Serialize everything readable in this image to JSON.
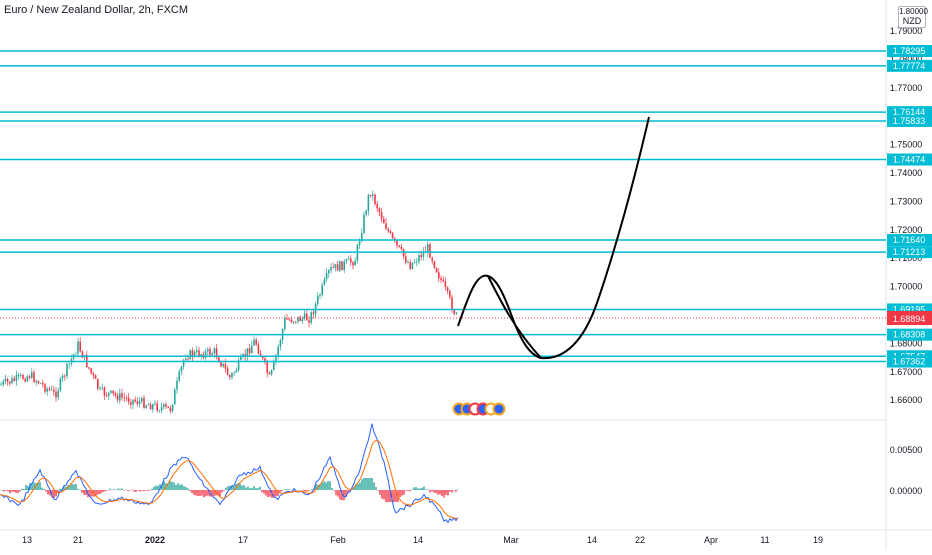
{
  "header": {
    "title": "Euro / New Zealand Dollar, 2h, FXCM",
    "currency": "NZD"
  },
  "colors": {
    "level_line": "#00bcd4",
    "level_badge_bg": "#00bcd4",
    "price_badge_bg": "#f23645",
    "candle_up": "#26a69a",
    "candle_down": "#f23645",
    "macd_line": "#2962ff",
    "signal_line": "#ff6d00",
    "projection": "#000000",
    "axis_text": "#131722"
  },
  "price_axis": {
    "top_value": "1.80000",
    "ticks": [
      "1.79000",
      "1.78000",
      "1.77000",
      "1.76000",
      "1.75000",
      "1.74000",
      "1.73000",
      "1.72000",
      "1.71000",
      "1.70000",
      "1.69000",
      "1.68000",
      "1.67000",
      "1.66000"
    ]
  },
  "levels": [
    "1.78295",
    "1.77774",
    "1.76144",
    "1.75833",
    "1.74474",
    "1.71640",
    "1.71213",
    "1.69195",
    "1.68308",
    "1.67547",
    "1.67362"
  ],
  "current_price": "1.68894",
  "indicator_axis": {
    "ticks": [
      "0.00500",
      "0.00000"
    ]
  },
  "time_axis": {
    "labels": [
      "13",
      "21",
      "2022",
      "17",
      "Feb",
      "14",
      "Mar",
      "14",
      "22",
      "Apr",
      "11",
      "19"
    ]
  },
  "projection_path": {
    "description_values": [
      "1.68894",
      "1.70400",
      "1.67300",
      "1.75900"
    ]
  }
}
